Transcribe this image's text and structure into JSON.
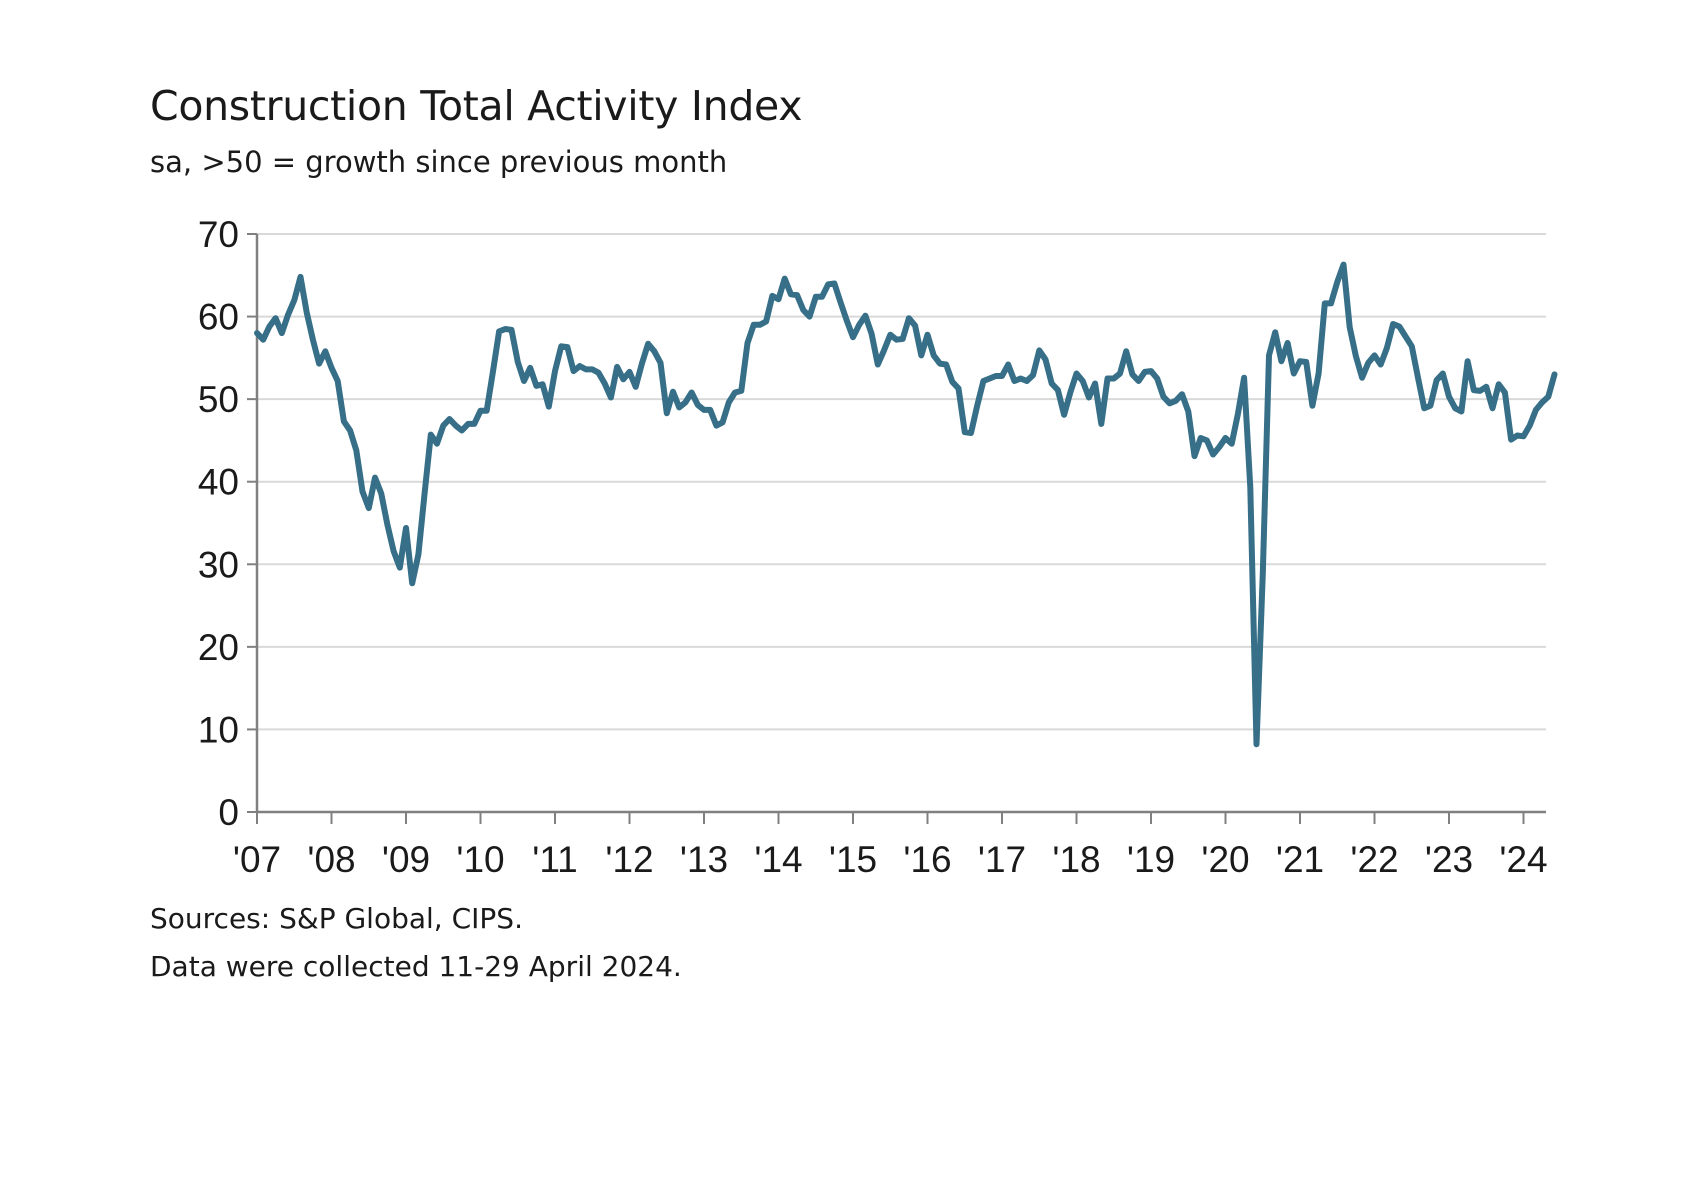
{
  "header": {
    "title": "Construction Total Activity Index",
    "subtitle": "sa, >50 = growth since previous month"
  },
  "footer": {
    "source": "Sources: S&P Global, CIPS.",
    "note": "Data were collected 11-29 April 2024."
  },
  "colors": {
    "line": "#366f87",
    "grid": "#d9d9d9",
    "axis": "#808080"
  },
  "chart_data": {
    "type": "line",
    "title": "Construction Total Activity Index",
    "subtitle": "sa, >50 = growth since previous month",
    "xlabel": "",
    "ylabel": "",
    "ylim": [
      0,
      70
    ],
    "yticks": [
      0,
      10,
      20,
      30,
      40,
      50,
      60,
      70
    ],
    "xlim": [
      "2007-01",
      "2024-04"
    ],
    "xtick_labels": [
      "'07",
      "'08",
      "'09",
      "'10",
      "'11",
      "'12",
      "'13",
      "'14",
      "'15",
      "'16",
      "'17",
      "'18",
      "'19",
      "'20",
      "'21",
      "'22",
      "'23",
      "'24"
    ],
    "grid": true,
    "legend": "none",
    "series": [
      {
        "name": "",
        "x_start": "2007-01",
        "frequency": "monthly",
        "values": [
          58.0,
          57.2,
          58.8,
          59.8,
          58.0,
          60.2,
          62.0,
          64.8,
          60.5,
          57.2,
          54.3,
          55.8,
          53.8,
          52.2,
          47.3,
          46.2,
          43.8,
          38.8,
          36.8,
          40.5,
          38.6,
          34.8,
          31.6,
          29.6,
          34.4,
          27.7,
          31.2,
          38.6,
          45.7,
          44.6,
          46.8,
          47.6,
          46.8,
          46.2,
          47.0,
          47.0,
          48.6,
          48.6,
          53.3,
          58.2,
          58.5,
          58.4,
          54.5,
          52.2,
          53.8,
          51.6,
          51.8,
          49.1,
          53.4,
          56.4,
          56.3,
          53.4,
          54.0,
          53.6,
          53.6,
          53.2,
          51.9,
          50.2,
          53.9,
          52.4,
          53.3,
          51.5,
          54.3,
          56.7,
          55.8,
          54.4,
          48.3,
          50.9,
          49.0,
          49.6,
          50.8,
          49.3,
          48.7,
          48.7,
          46.8,
          47.2,
          49.6,
          50.8,
          51.0,
          56.8,
          59.0,
          59.0,
          59.4,
          62.5,
          62.1,
          64.6,
          62.7,
          62.6,
          60.8,
          60.0,
          62.4,
          62.4,
          63.9,
          64.0,
          61.7,
          59.5,
          57.5,
          59.0,
          60.1,
          57.9,
          54.2,
          55.9,
          57.8,
          57.2,
          57.3,
          59.8,
          58.9,
          55.3,
          57.8,
          55.3,
          54.3,
          54.2,
          52.1,
          51.3,
          46.0,
          45.9,
          49.2,
          52.2,
          52.5,
          52.8,
          52.8,
          54.2,
          52.2,
          52.5,
          52.2,
          52.9,
          55.9,
          54.8,
          51.9,
          51.1,
          48.1,
          50.8,
          53.1,
          52.2,
          50.2,
          51.9,
          47.0,
          52.5,
          52.5,
          53.1,
          55.8,
          53.0,
          52.2,
          53.3,
          53.4,
          52.5,
          50.3,
          49.5,
          49.8,
          50.6,
          48.5,
          43.1,
          45.3,
          45.0,
          43.3,
          44.2,
          45.3,
          44.6,
          48.2,
          52.6,
          39.3,
          8.2,
          28.9,
          55.3,
          58.1,
          54.6,
          56.8,
          53.1,
          54.6,
          54.5,
          49.2,
          53.1,
          61.6,
          61.6,
          64.2,
          66.3,
          58.7,
          55.2,
          52.6,
          54.4,
          55.3,
          54.2,
          56.2,
          59.1,
          58.8,
          57.6,
          56.4,
          52.6,
          48.9,
          49.2,
          52.3,
          53.1,
          50.3,
          48.9,
          48.5,
          54.6,
          51.1,
          51.0,
          51.5,
          48.9,
          51.8,
          50.8,
          45.1,
          45.6,
          45.5,
          46.8,
          48.7,
          49.6,
          50.3,
          53.0
        ]
      }
    ]
  }
}
